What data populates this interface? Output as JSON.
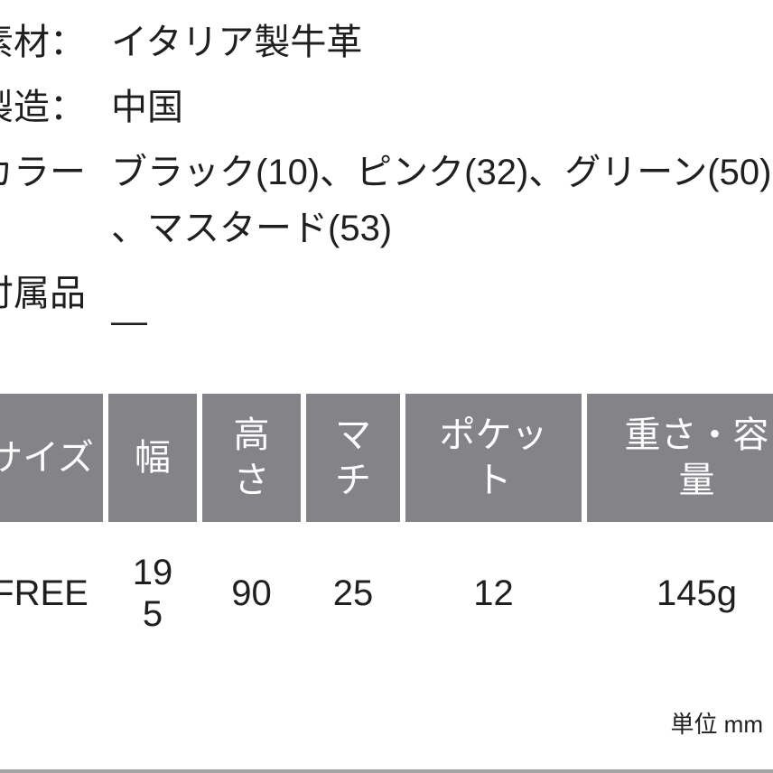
{
  "product_specs": {
    "rows": [
      {
        "label": "素材：",
        "value": "イタリア製牛革"
      },
      {
        "label": "製造：",
        "value": "中国"
      },
      {
        "label": "カラー：",
        "value": "ブラック(10)、ピンク(32)、グリーン(50)、マスタード(53)"
      },
      {
        "label": "付属品：",
        "value": "—"
      }
    ]
  },
  "size_table": {
    "headers": [
      "サイズ",
      "幅",
      "高さ",
      "マチ",
      "ポケット",
      "重さ・容量"
    ],
    "rows": [
      {
        "size": "FREE",
        "width": "195",
        "height": "90",
        "gusset": "25",
        "pocket": "12",
        "weight": "145g"
      }
    ],
    "unit_note": "単位 mm"
  },
  "colors": {
    "table_header_bg": "#838388",
    "table_header_text": "#ffffff",
    "body_text": "#1f1f1f",
    "bottom_divider": "#a3a3a3"
  }
}
